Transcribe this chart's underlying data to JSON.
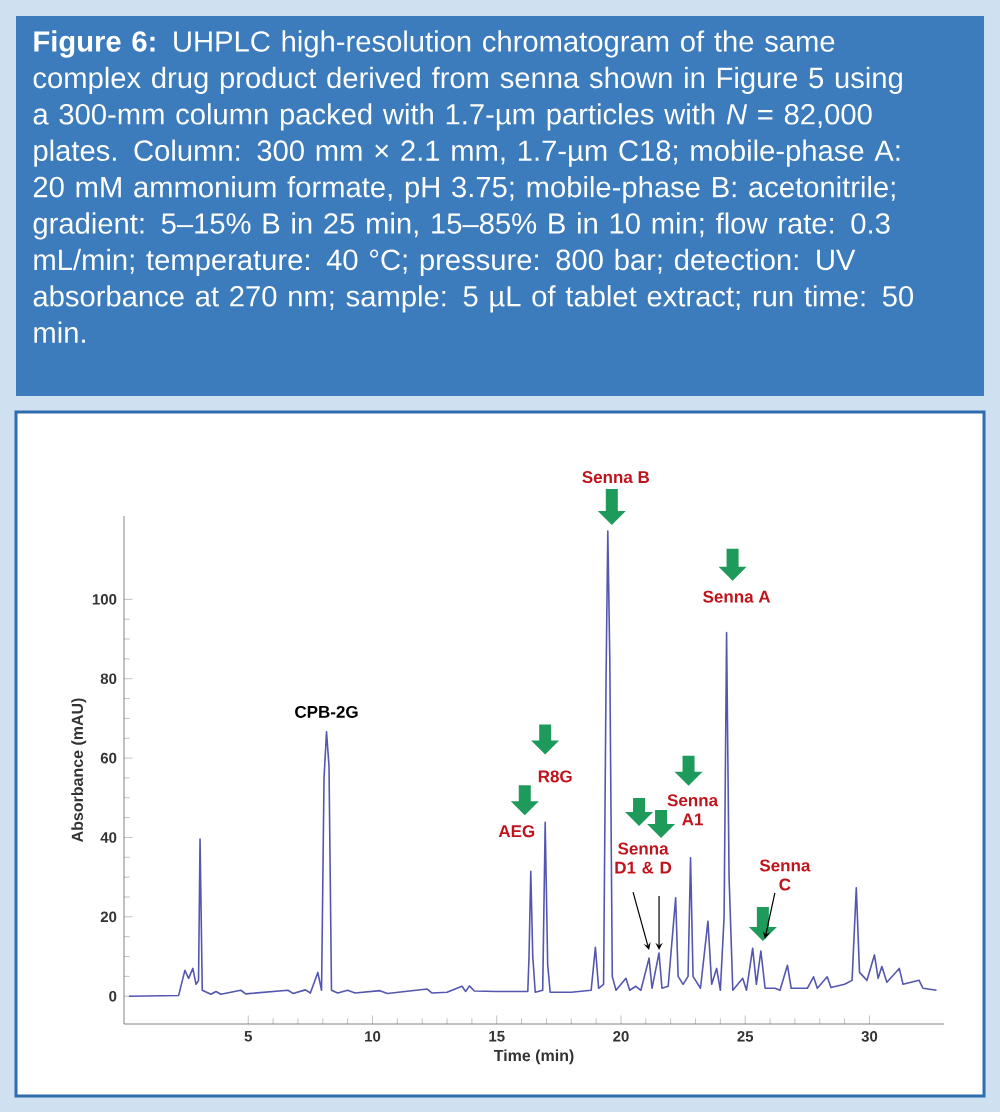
{
  "chart_data": {
    "type": "line",
    "title": "**Figure 6:** UHPLC high-resolution chromatogram of the same complex drug product derived from senna shown in Figure 5 using a 300-mm column packed with 1.7-µm particles with *N* = 82,000 plates. Column: 300 mm × 2.1 mm, 1.7-µm C18; mobile-phase A: 20 mM ammonium formate, pH 3.75; mobile-phase B: acetonitrile; gradient: 5–15% B in 25 min, 15–85% B in 10 min; flow rate: 0.3 mL/min; temperature: 40 °C; pressure: 800 bar; detection: UV absorbance at 270 nm; sample: 5 µL of tablet extract; run time: 50 min.",
    "xlabel": "Time (min)",
    "ylabel": "Absorbance (mAU)",
    "color": "#5457b0",
    "x": [
      0.2,
      2.2,
      2.45,
      2.6,
      2.77,
      2.9,
      3.0,
      3.06,
      3.15,
      3.5,
      3.7,
      3.9,
      4.7,
      4.9,
      6.6,
      6.8,
      7.3,
      7.5,
      7.8,
      7.95,
      8.05,
      8.15,
      8.25,
      8.35,
      8.6,
      9.0,
      9.3,
      10.3,
      10.6,
      12.2,
      12.4,
      13.0,
      13.6,
      13.75,
      13.9,
      14.1,
      15.0,
      16.0,
      16.25,
      16.3,
      16.37,
      16.45,
      16.55,
      16.85,
      16.95,
      17.05,
      17.15,
      18.0,
      18.8,
      18.97,
      19.1,
      19.3,
      19.4,
      19.47,
      19.55,
      19.65,
      19.8,
      20.2,
      20.35,
      20.6,
      20.8,
      21.13,
      21.25,
      21.53,
      21.65,
      21.9,
      22.2,
      22.3,
      22.5,
      22.7,
      22.8,
      22.9,
      23.2,
      23.5,
      23.65,
      23.85,
      24.0,
      24.15,
      24.25,
      24.35,
      24.5,
      24.9,
      25.05,
      25.3,
      25.45,
      25.63,
      25.8,
      26.2,
      26.4,
      26.7,
      26.85,
      27.5,
      27.75,
      27.9,
      28.3,
      28.45,
      29.0,
      29.3,
      29.47,
      29.6,
      29.9,
      30.2,
      30.35,
      30.5,
      30.7,
      31.2,
      31.35,
      32.0,
      32.15,
      32.7
    ],
    "values": [
      0,
      0.2,
      6.5,
      4.5,
      7,
      3,
      4,
      39.6,
      1.5,
      0.5,
      1.2,
      0.5,
      1.5,
      0.6,
      1.5,
      0.7,
      1.6,
      0.8,
      6,
      1.5,
      55,
      66.6,
      58,
      1.5,
      0.8,
      1.5,
      0.8,
      1.4,
      0.7,
      1.8,
      0.8,
      1,
      2.5,
      1.2,
      2.6,
      1.3,
      1.2,
      1.2,
      1.2,
      10,
      31.5,
      10,
      1,
      1.5,
      43.8,
      8,
      1,
      1,
      1.5,
      12.3,
      2,
      3,
      80,
      117.2,
      85,
      5,
      1.5,
      4.5,
      1.5,
      2.5,
      1.5,
      9.6,
      2,
      10.9,
      2,
      2.5,
      24.8,
      5,
      3,
      5,
      34.9,
      5,
      2,
      18.9,
      3,
      7,
      1.5,
      20,
      91.6,
      30,
      1.5,
      4.5,
      1.5,
      12.1,
      3,
      11.4,
      2,
      2,
      1.5,
      7.8,
      2,
      2,
      4.9,
      2,
      4.9,
      2.2,
      3,
      4,
      27.3,
      6,
      4,
      10.4,
      4.5,
      7.5,
      3.5,
      7,
      3,
      4,
      2,
      1.5
    ],
    "xlim": [
      0,
      33
    ],
    "ylim": [
      -7,
      121
    ],
    "xticks": [
      5,
      10,
      15,
      20,
      25,
      30
    ],
    "yticks": [
      0,
      20,
      40,
      60,
      80,
      100
    ],
    "annotations": [
      {
        "text": "CPB-2G",
        "x": 8.15,
        "y": 66.6
      },
      {
        "text": "AEG",
        "x": 16.37,
        "y": 31.5
      },
      {
        "text": "R8G",
        "x": 16.95,
        "y": 43.8
      },
      {
        "text": "Senna B",
        "x": 19.47,
        "y": 117.2
      },
      {
        "text": "Senna A",
        "x": 24.25,
        "y": 91.6
      },
      {
        "text": "Senna A1",
        "x": 22.8,
        "y": 34.9
      },
      {
        "text": "Senna D1 & D",
        "x": 21.13,
        "y": 9.6
      },
      {
        "text": "Senna C",
        "x": 25.63,
        "y": 11.4
      }
    ]
  }
}
